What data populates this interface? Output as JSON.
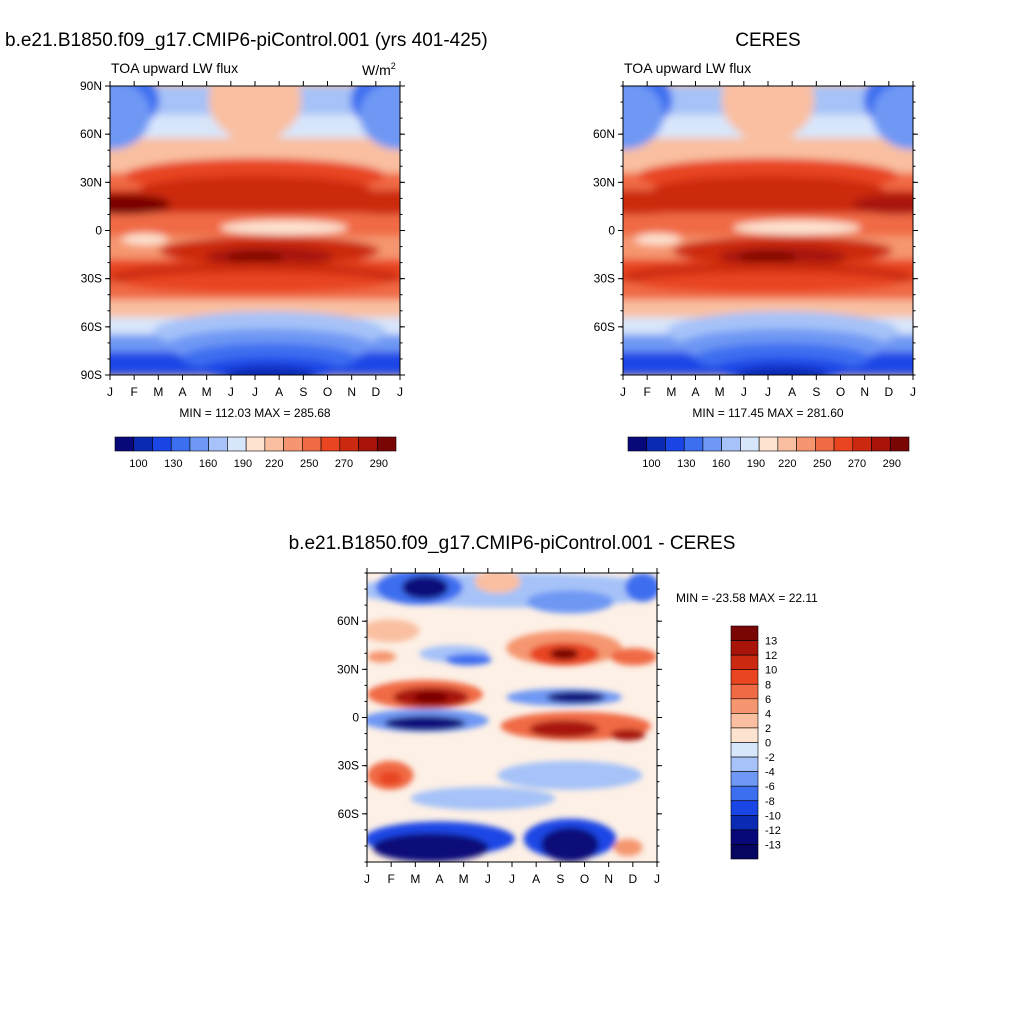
{
  "panels": {
    "model": {
      "title": "b.e21.B1850.f09_g17.CMIP6-piControl.001 (yrs 401-425)",
      "subtitle": "TOA upward LW flux",
      "units_base": "W/m",
      "units_exp": "2",
      "minmax": "MIN = 112.03 MAX = 285.68"
    },
    "obs": {
      "title": "CERES",
      "subtitle": "TOA upward LW flux",
      "minmax": "MIN = 117.45 MAX = 281.60"
    },
    "diff": {
      "title": "b.e21.B1850.f09_g17.CMIP6-piControl.001 - CERES",
      "minmax": "MIN = -23.58 MAX =  22.11"
    }
  },
  "chart_data": [
    {
      "type": "heatmap",
      "title": "b.e21.B1850.f09_g17.CMIP6-piControl.001 (yrs 401-425)",
      "subtitle": "TOA upward LW flux",
      "units": "W/m2",
      "x_ticks": [
        "J",
        "F",
        "M",
        "A",
        "M",
        "J",
        "J",
        "A",
        "S",
        "O",
        "N",
        "D",
        "J"
      ],
      "y_ticks": [
        "90N",
        "60N",
        "30N",
        "0",
        "30S",
        "60S",
        "90S"
      ],
      "ylim": [
        -90,
        90
      ],
      "min": 112.03,
      "max": 285.68,
      "colorbar_labels": [
        "100",
        "130",
        "160",
        "190",
        "220",
        "250",
        "270",
        "290"
      ],
      "colors": [
        "#08087a",
        "#0a2ab4",
        "#1a46e6",
        "#3c6ef0",
        "#6e98f4",
        "#a6c2f8",
        "#d8e6fb",
        "#fde3d0",
        "#f9bfa0",
        "#f59670",
        "#f06a45",
        "#e84520",
        "#cc2a10",
        "#a8140a",
        "#7a0505"
      ]
    },
    {
      "type": "heatmap",
      "title": "CERES",
      "subtitle": "TOA upward LW flux",
      "x_ticks": [
        "J",
        "F",
        "M",
        "A",
        "M",
        "J",
        "J",
        "A",
        "S",
        "O",
        "N",
        "D",
        "J"
      ],
      "y_ticks": [
        "60N",
        "30N",
        "0",
        "30S",
        "60S"
      ],
      "min": 117.45,
      "max": 281.6,
      "colorbar_labels": [
        "100",
        "130",
        "160",
        "190",
        "220",
        "250",
        "270",
        "290"
      ]
    },
    {
      "type": "heatmap",
      "title": "b.e21.B1850.f09_g17.CMIP6-piControl.001 - CERES",
      "x_ticks": [
        "J",
        "F",
        "M",
        "A",
        "M",
        "J",
        "J",
        "A",
        "S",
        "O",
        "N",
        "D",
        "J"
      ],
      "y_ticks": [
        "60N",
        "30N",
        "0",
        "30S",
        "60S"
      ],
      "min": -23.58,
      "max": 22.11,
      "colorbar_labels": [
        "13",
        "12",
        "10",
        "8",
        "6",
        "4",
        "2",
        "0",
        "-2",
        "-4",
        "-6",
        "-8",
        "-10",
        "-12",
        "-13"
      ],
      "colors": [
        "#7a0505",
        "#a8140a",
        "#cc2a10",
        "#e84520",
        "#f06a45",
        "#f59670",
        "#f9bfa0",
        "#fde3d0",
        "#d8e6fb",
        "#a6c2f8",
        "#6e98f4",
        "#3c6ef0",
        "#1a46e6",
        "#0a2ab4",
        "#08087a",
        "#060660"
      ]
    }
  ]
}
